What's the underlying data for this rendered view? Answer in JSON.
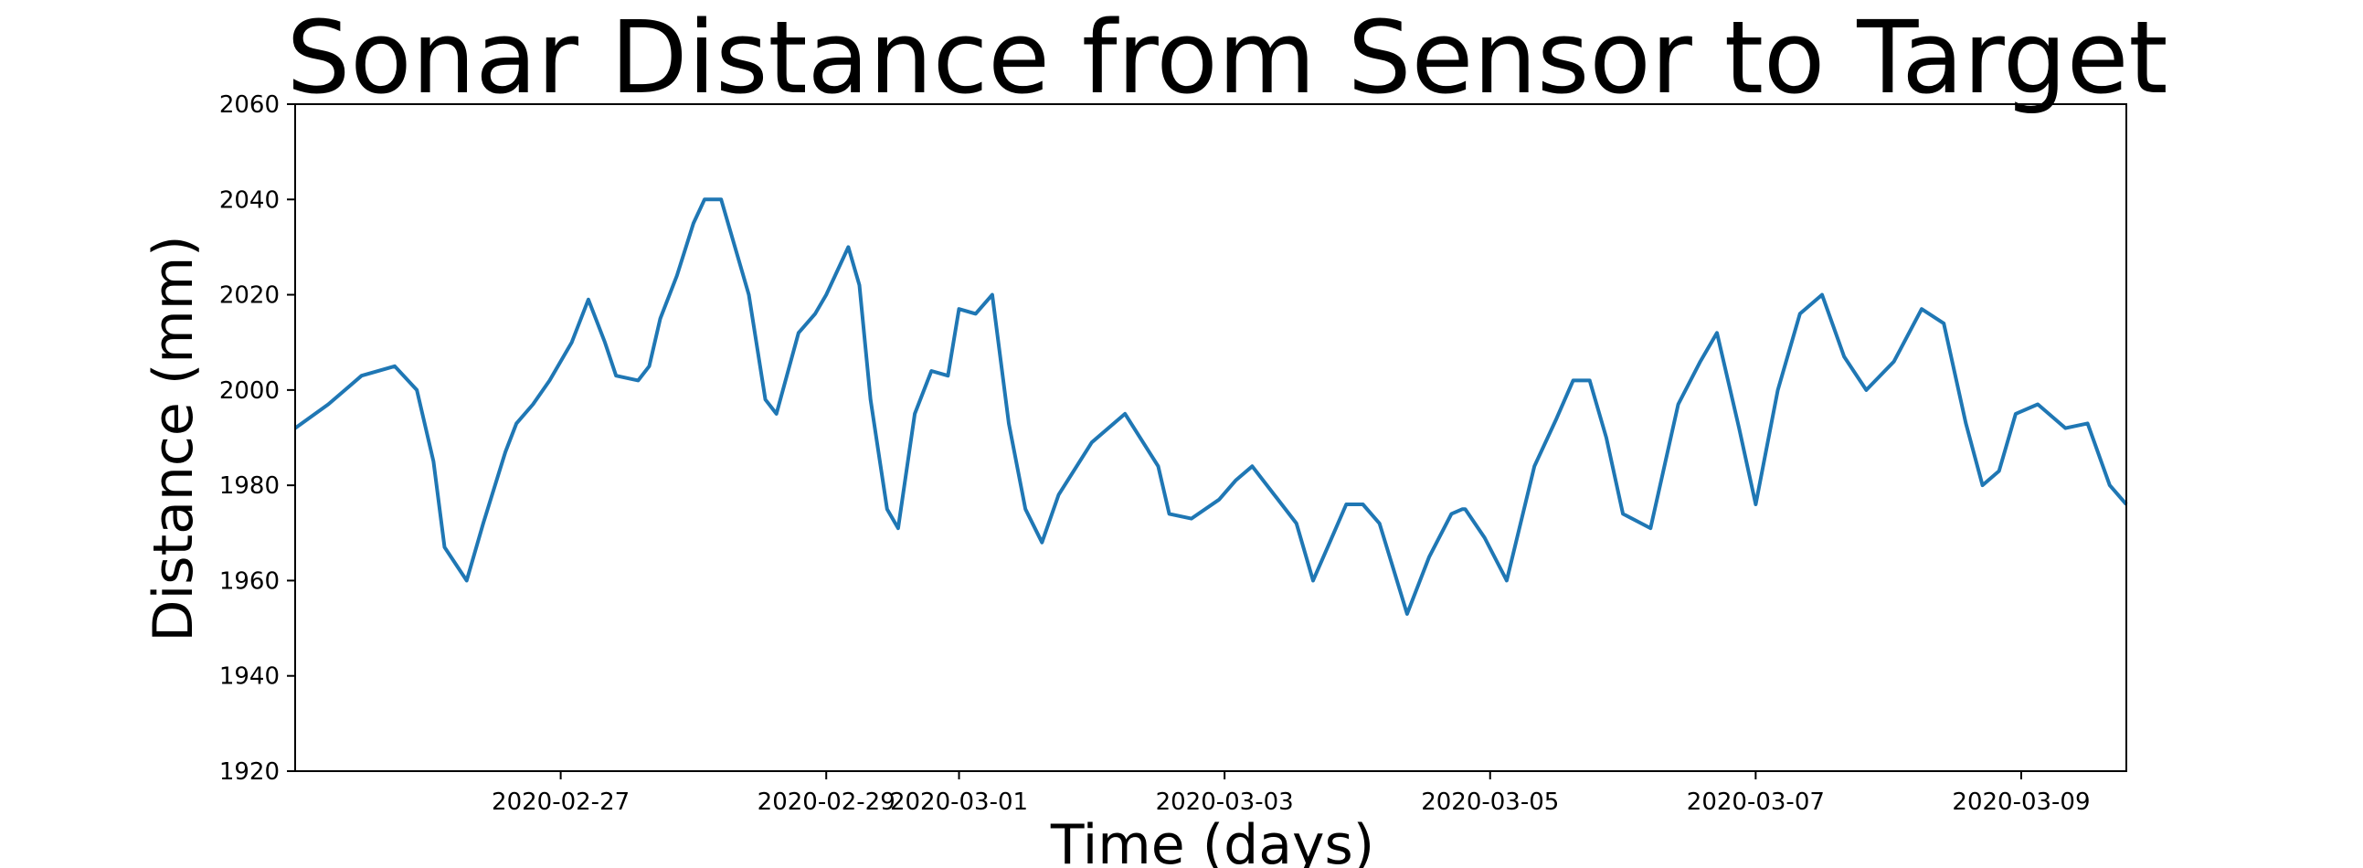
{
  "chart_data": {
    "type": "line",
    "title": "Sonar Distance from Sensor to Target",
    "xlabel": "Time (days)",
    "ylabel": "Distance (mm)",
    "ylim": [
      1920,
      2060
    ],
    "xlim": [
      "2020-02-25T00:00",
      "2020-03-09T19:00"
    ],
    "yticks": [
      1920,
      1940,
      1960,
      1980,
      2000,
      2020,
      2040,
      2060
    ],
    "xticks": [
      "2020-02-27",
      "2020-02-29",
      "2020-03-01",
      "2020-03-03",
      "2020-03-05",
      "2020-03-07",
      "2020-03-09"
    ],
    "grid": false,
    "legend": "none",
    "color": "#1f77b4",
    "series": [
      {
        "x": [
          "2020-02-25T00:00",
          "2020-02-25T06:00",
          "2020-02-25T12:00",
          "2020-02-25T18:00",
          "2020-02-25T22:00",
          "2020-02-26T01:00",
          "2020-02-26T03:00",
          "2020-02-26T07:00",
          "2020-02-26T10:00",
          "2020-02-26T14:00",
          "2020-02-26T16:00",
          "2020-02-26T19:00",
          "2020-02-26T22:00",
          "2020-02-27T02:00",
          "2020-02-27T05:00",
          "2020-02-27T08:00",
          "2020-02-27T10:00",
          "2020-02-27T14:00",
          "2020-02-27T16:00",
          "2020-02-27T18:00",
          "2020-02-27T21:00",
          "2020-02-28T00:00",
          "2020-02-28T02:00",
          "2020-02-28T05:00",
          "2020-02-28T10:00",
          "2020-02-28T13:00",
          "2020-02-28T15:00",
          "2020-02-28T19:00",
          "2020-02-28T22:00",
          "2020-02-29T00:00",
          "2020-02-29T02:00",
          "2020-02-29T04:00",
          "2020-02-29T06:00",
          "2020-02-29T08:00",
          "2020-02-29T11:00",
          "2020-02-29T13:00",
          "2020-02-29T16:00",
          "2020-02-29T19:00",
          "2020-02-29T22:00",
          "2020-03-01T00:00",
          "2020-03-01T03:00",
          "2020-03-01T06:00",
          "2020-03-01T09:00",
          "2020-03-01T12:00",
          "2020-03-01T15:00",
          "2020-03-01T18:00",
          "2020-03-02T00:00",
          "2020-03-02T06:00",
          "2020-03-02T12:00",
          "2020-03-02T14:00",
          "2020-03-02T18:00",
          "2020-03-02T23:00",
          "2020-03-03T02:00",
          "2020-03-03T05:00",
          "2020-03-03T09:00",
          "2020-03-03T13:00",
          "2020-03-03T16:00",
          "2020-03-03T19:00",
          "2020-03-03T22:00",
          "2020-03-04T01:00",
          "2020-03-04T04:00",
          "2020-03-04T09:00",
          "2020-03-04T13:00",
          "2020-03-04T17:00",
          "2020-03-04T19:00",
          "2020-03-04T19:30",
          "2020-03-04T23:00",
          "2020-03-05T03:00",
          "2020-03-05T08:00",
          "2020-03-05T12:00",
          "2020-03-05T15:00",
          "2020-03-05T18:00",
          "2020-03-05T21:00",
          "2020-03-06T00:00",
          "2020-03-06T05:00",
          "2020-03-06T10:00",
          "2020-03-06T14:00",
          "2020-03-06T17:00",
          "2020-03-06T21:00",
          "2020-03-07T00:00",
          "2020-03-07T04:00",
          "2020-03-07T08:00",
          "2020-03-07T12:00",
          "2020-03-07T16:00",
          "2020-03-07T20:00",
          "2020-03-08T01:00",
          "2020-03-08T06:00",
          "2020-03-08T10:00",
          "2020-03-08T14:00",
          "2020-03-08T17:00",
          "2020-03-08T20:00",
          "2020-03-08T23:00",
          "2020-03-09T03:00",
          "2020-03-09T08:00",
          "2020-03-09T12:00",
          "2020-03-09T16:00",
          "2020-03-09T19:00"
        ],
        "y": [
          1992,
          1997,
          2003,
          2005,
          2000,
          1985,
          1967,
          1960,
          1972,
          1987,
          1993,
          1997,
          2002,
          2010,
          2019,
          2010,
          2003,
          2002,
          2005,
          2015,
          2024,
          2035,
          2040,
          2040,
          2020,
          1998,
          1995,
          2012,
          2016,
          2020,
          2025,
          2030,
          2022,
          1998,
          1975,
          1971,
          1995,
          2004,
          2003,
          2017,
          2016,
          2020,
          1993,
          1975,
          1968,
          1978,
          1989,
          1995,
          1984,
          1974,
          1973,
          1977,
          1981,
          1984,
          1978,
          1972,
          1960,
          1968,
          1976,
          1976,
          1972,
          1953,
          1965,
          1974,
          1975,
          1975,
          1969,
          1960,
          1984,
          1994,
          2002,
          2002,
          1990,
          1974,
          1971,
          1997,
          2006,
          2012,
          1992,
          1976,
          2000,
          2016,
          2020,
          2007,
          2000,
          2006,
          2017,
          2014,
          1993,
          1980,
          1983,
          1995,
          1997,
          1992,
          1993,
          1980,
          1976
        ]
      }
    ]
  }
}
